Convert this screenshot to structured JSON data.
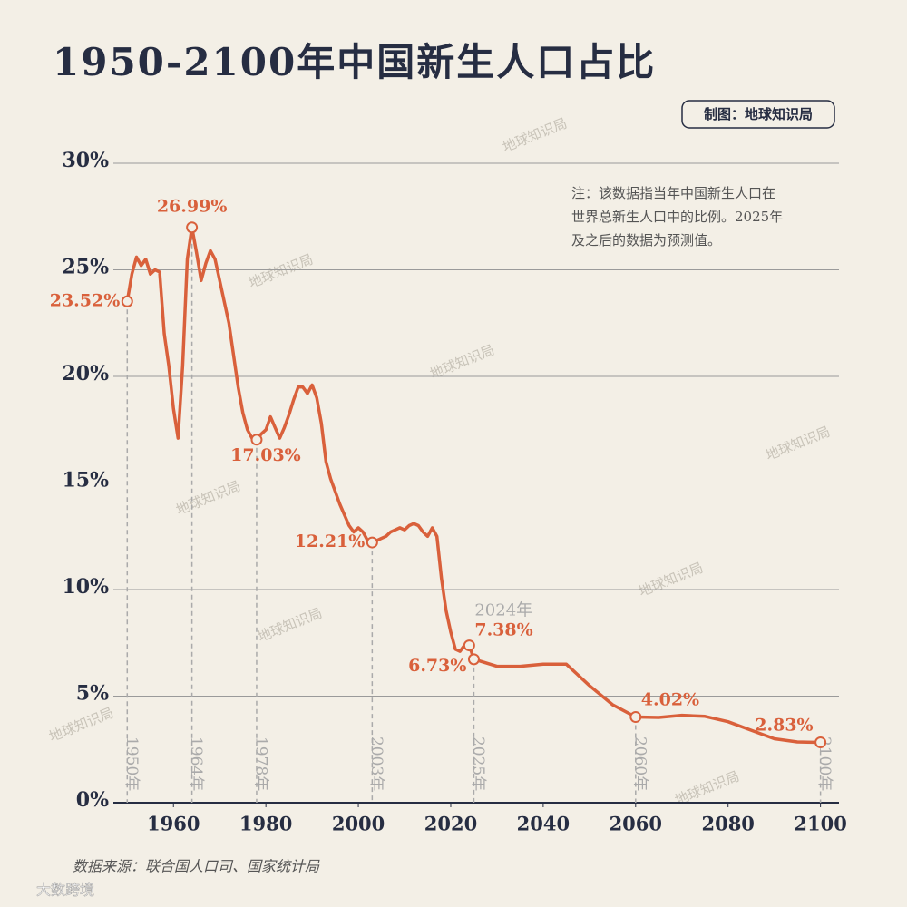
{
  "chart_data": {
    "type": "line",
    "title": "1950-2100年中国新生人口占比",
    "credit": "制图：地球知识局",
    "note": [
      "注：该数据指当年中国新生人口在",
      "世界总新生人口中的比例。2025年",
      "及之后的数据为预测值。"
    ],
    "source": "数据来源：联合国人口司、国家统计局",
    "watermark": "地球知识局",
    "logo": "大数跨境",
    "color": "#d9603b",
    "grid": true,
    "xlim": [
      1947,
      2104
    ],
    "ylim": [
      0,
      30
    ],
    "xticks": [
      1960,
      1980,
      2000,
      2020,
      2040,
      2060,
      2080,
      2100
    ],
    "yticks": [
      {
        "value": 0,
        "label": "0%"
      },
      {
        "value": 5,
        "label": "5%"
      },
      {
        "value": 10,
        "label": "10%"
      },
      {
        "value": 15,
        "label": "15%"
      },
      {
        "value": 20,
        "label": "20%"
      },
      {
        "value": 25,
        "label": "25%"
      },
      {
        "value": 30,
        "label": "30%"
      }
    ],
    "x": [
      1950,
      1951,
      1952,
      1953,
      1954,
      1955,
      1956,
      1957,
      1958,
      1959,
      1960,
      1961,
      1962,
      1963,
      1964,
      1965,
      1966,
      1967,
      1968,
      1969,
      1970,
      1971,
      1972,
      1973,
      1974,
      1975,
      1976,
      1977,
      1978,
      1979,
      1980,
      1981,
      1982,
      1983,
      1984,
      1985,
      1986,
      1987,
      1988,
      1989,
      1990,
      1991,
      1992,
      1993,
      1994,
      1995,
      1996,
      1997,
      1998,
      1999,
      2000,
      2001,
      2002,
      2003,
      2004,
      2005,
      2006,
      2007,
      2008,
      2009,
      2010,
      2011,
      2012,
      2013,
      2014,
      2015,
      2016,
      2017,
      2018,
      2019,
      2020,
      2021,
      2022,
      2023,
      2024,
      2025,
      2030,
      2035,
      2040,
      2045,
      2050,
      2055,
      2060,
      2065,
      2070,
      2075,
      2080,
      2085,
      2090,
      2095,
      2100
    ],
    "values": [
      23.52,
      24.8,
      25.6,
      25.2,
      25.5,
      24.8,
      25.0,
      24.9,
      22.0,
      20.5,
      18.5,
      17.1,
      20.5,
      25.5,
      26.99,
      25.8,
      24.5,
      25.3,
      25.9,
      25.5,
      24.5,
      23.5,
      22.5,
      21.0,
      19.5,
      18.3,
      17.5,
      17.1,
      17.03,
      17.3,
      17.5,
      18.1,
      17.6,
      17.1,
      17.6,
      18.2,
      18.9,
      19.5,
      19.5,
      19.2,
      19.6,
      19.0,
      17.8,
      16.0,
      15.2,
      14.6,
      14.0,
      13.5,
      13.0,
      12.7,
      12.9,
      12.7,
      12.3,
      12.21,
      12.3,
      12.4,
      12.5,
      12.7,
      12.8,
      12.9,
      12.8,
      13.0,
      13.1,
      13.0,
      12.7,
      12.5,
      12.9,
      12.5,
      10.5,
      9.0,
      8.0,
      7.2,
      7.1,
      7.4,
      7.38,
      6.73,
      6.4,
      6.4,
      6.5,
      6.5,
      5.5,
      4.6,
      4.02,
      4.0,
      4.1,
      4.05,
      3.8,
      3.4,
      3.0,
      2.85,
      2.83
    ],
    "highlights": [
      {
        "x": 1950,
        "value": 23.52,
        "label": "23.52%",
        "year_label": "1950年",
        "guide": true
      },
      {
        "x": 1964,
        "value": 26.99,
        "label": "26.99%",
        "year_label": "1964年",
        "guide": true
      },
      {
        "x": 1978,
        "value": 17.03,
        "label": "17.03%",
        "year_label": "1978年",
        "guide": true
      },
      {
        "x": 2003,
        "value": 12.21,
        "label": "12.21%",
        "year_label": "2003年",
        "guide": true
      },
      {
        "x": 2024,
        "value": 7.38,
        "label": "7.38%",
        "year_label": "2024年",
        "guide": false
      },
      {
        "x": 2025,
        "value": 6.73,
        "label": "6.73%",
        "year_label": "2025年",
        "guide": true
      },
      {
        "x": 2060,
        "value": 4.02,
        "label": "4.02%",
        "year_label": "2060年",
        "guide": true
      },
      {
        "x": 2100,
        "value": 2.83,
        "label": "2.83%",
        "year_label": "2100年",
        "guide": true
      }
    ]
  }
}
